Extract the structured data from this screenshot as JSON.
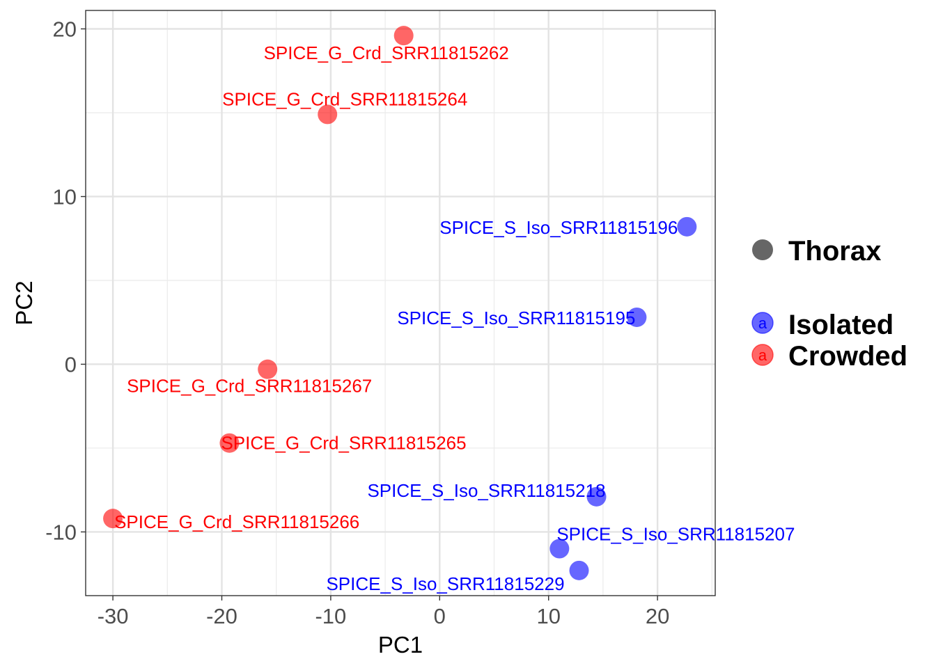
{
  "chart_data": {
    "type": "scatter",
    "xlabel": "PC1",
    "ylabel": "PC2",
    "xlim": [
      -32.5,
      25.3
    ],
    "ylim": [
      -13.8,
      21.1
    ],
    "x_ticks": [
      -30,
      -20,
      -10,
      0,
      10,
      20
    ],
    "y_ticks": [
      -10,
      0,
      10,
      20
    ],
    "x_tick_labels": [
      "-30",
      "-20",
      "-10",
      "0",
      "10",
      "20"
    ],
    "y_tick_labels": [
      "-10",
      "0",
      "10",
      "20"
    ],
    "grid": true,
    "legend_position": "right",
    "legend": {
      "shape_entries": [
        {
          "label": "Thorax",
          "color": "#666666"
        }
      ],
      "color_entries": [
        {
          "label": "Isolated",
          "color": "#0000FF",
          "key_letter": "a"
        },
        {
          "label": "Crowded",
          "color": "#FF0000",
          "key_letter": "a"
        }
      ]
    },
    "series": [
      {
        "name": "Crowded",
        "color": "#FF0000",
        "points": [
          {
            "x": -3.3,
            "y": 19.6,
            "label": "SPICE_G_Crd_SRR11815262"
          },
          {
            "x": -10.3,
            "y": 14.9,
            "label": "SPICE_G_Crd_SRR11815264"
          },
          {
            "x": -15.8,
            "y": -0.3,
            "label": "SPICE_G_Crd_SRR11815267"
          },
          {
            "x": -19.3,
            "y": -4.7,
            "label": "SPICE_G_Crd_SRR11815265"
          },
          {
            "x": -30.0,
            "y": -9.2,
            "label": "SPICE_G_Crd_SRR11815266"
          }
        ]
      },
      {
        "name": "Isolated",
        "color": "#0000FF",
        "points": [
          {
            "x": 22.7,
            "y": 8.2,
            "label": "SPICE_S_Iso_SRR11815196"
          },
          {
            "x": 18.1,
            "y": 2.8,
            "label": "SPICE_S_Iso_SRR11815195"
          },
          {
            "x": 14.4,
            "y": -7.9,
            "label": "SPICE_S_Iso_SRR11815218"
          },
          {
            "x": 11.0,
            "y": -11.0,
            "label": "SPICE_S_Iso_SRR11815207"
          },
          {
            "x": 12.8,
            "y": -12.3,
            "label": "SPICE_S_Iso_SRR11815229"
          }
        ]
      }
    ]
  }
}
